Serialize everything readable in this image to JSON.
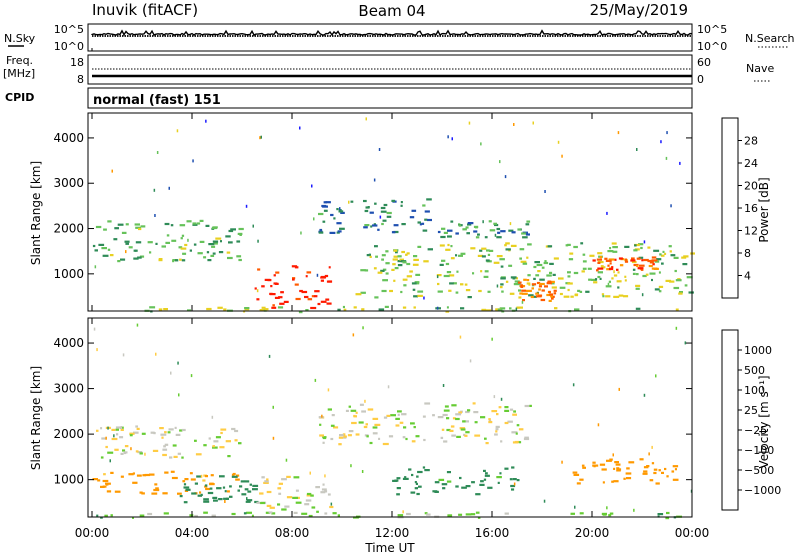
{
  "header": {
    "station": "Inuvik (fitACF)",
    "beam": "Beam 04",
    "date": "25/May/2019"
  },
  "nsky_panel": {
    "left_label": "N.Sky",
    "right_label": "N.Search",
    "left_ticks": [
      "10^5",
      "10^0"
    ],
    "right_ticks": [
      "10^5",
      "10^0"
    ]
  },
  "freq_panel": {
    "left_label_line1": "Freq.",
    "left_label_line2": "[MHz]",
    "right_label": "Nave",
    "left_ticks": [
      "18",
      "8"
    ],
    "right_ticks": [
      "60",
      "0"
    ]
  },
  "cpid_panel": {
    "label": "CPID",
    "mode_text": "normal (fast) 151"
  },
  "x_axis": {
    "title": "Time UT",
    "ticks": [
      "00:00",
      "04:00",
      "08:00",
      "12:00",
      "16:00",
      "20:00",
      "00:00"
    ]
  },
  "colors": {
    "power_scale": [
      "#1a1aff",
      "#1e4fb0",
      "#2e8b57",
      "#66c25a",
      "#e8d020",
      "#ff9900",
      "#ff5a00",
      "#ff1a00"
    ],
    "velocity_scale": [
      "#ff1a00",
      "#ff5a00",
      "#ff9900",
      "#ffcc44",
      "#c8c8c0",
      "#66cc33",
      "#2e8b57",
      "#1e4fb0",
      "#1a1aff"
    ]
  },
  "chart_data": [
    {
      "type": "heatmap",
      "title": "",
      "xlabel": "Time UT",
      "ylabel": "Slant Range [km]",
      "xlim": [
        "00:00",
        "24:00"
      ],
      "ylim": [
        180,
        4550
      ],
      "y_ticks": [
        1000,
        2000,
        3000,
        4000
      ],
      "colorbar": {
        "label": "Power [dB]",
        "ticks": [
          4,
          8,
          12,
          16,
          20,
          24,
          28
        ],
        "range": [
          0,
          30
        ]
      },
      "features": [
        {
          "t_start": 0.0,
          "t_end": 24.0,
          "range_min": 180,
          "range_max": 300,
          "value": 14
        },
        {
          "t_start": 0.0,
          "t_end": 6.0,
          "range_min": 1300,
          "range_max": 2200,
          "value": 12
        },
        {
          "t_start": 6.5,
          "t_end": 9.5,
          "range_min": 250,
          "range_max": 1200,
          "value": 28
        },
        {
          "t_start": 9.0,
          "t_end": 13.5,
          "range_min": 1900,
          "range_max": 2700,
          "value": 8
        },
        {
          "t_start": 13.5,
          "t_end": 17.5,
          "range_min": 1800,
          "range_max": 2200,
          "value": 10
        },
        {
          "t_start": 10.5,
          "t_end": 24.0,
          "range_min": 500,
          "range_max": 1700,
          "value": 14
        },
        {
          "t_start": 20.0,
          "t_end": 22.5,
          "range_min": 1100,
          "range_max": 1400,
          "value": 24
        },
        {
          "t_start": 17.0,
          "t_end": 18.5,
          "range_min": 400,
          "range_max": 900,
          "value": 22
        }
      ]
    },
    {
      "type": "heatmap",
      "title": "",
      "xlabel": "Time UT",
      "ylabel": "Slant Range [km]",
      "xlim": [
        "00:00",
        "24:00"
      ],
      "ylim": [
        180,
        4550
      ],
      "y_ticks": [
        1000,
        2000,
        3000,
        4000
      ],
      "colorbar": {
        "label": "Velocity [m s⁻¹]",
        "ticks": [
          "1000",
          "500",
          "100",
          "25",
          "−25",
          "−100",
          "−500",
          "−1000"
        ],
        "range": [
          -1200,
          1200
        ]
      },
      "features": [
        {
          "t_start": 0.0,
          "t_end": 24.0,
          "range_min": 180,
          "range_max": 300,
          "value": 60
        },
        {
          "t_start": 0.0,
          "t_end": 6.0,
          "range_min": 1500,
          "range_max": 2200,
          "value": 0
        },
        {
          "t_start": 0.0,
          "t_end": 6.0,
          "range_min": 700,
          "range_max": 1200,
          "value": -150
        },
        {
          "t_start": 3.5,
          "t_end": 6.5,
          "range_min": 500,
          "range_max": 1100,
          "value": 200
        },
        {
          "t_start": 6.5,
          "t_end": 9.5,
          "range_min": 250,
          "range_max": 1100,
          "value": 0
        },
        {
          "t_start": 9.0,
          "t_end": 17.5,
          "range_min": 1800,
          "range_max": 2700,
          "value": 0
        },
        {
          "t_start": 12.0,
          "t_end": 17.0,
          "range_min": 700,
          "range_max": 1300,
          "value": 150
        },
        {
          "t_start": 19.0,
          "t_end": 23.5,
          "range_min": 900,
          "range_max": 1500,
          "value": -300
        }
      ]
    }
  ]
}
